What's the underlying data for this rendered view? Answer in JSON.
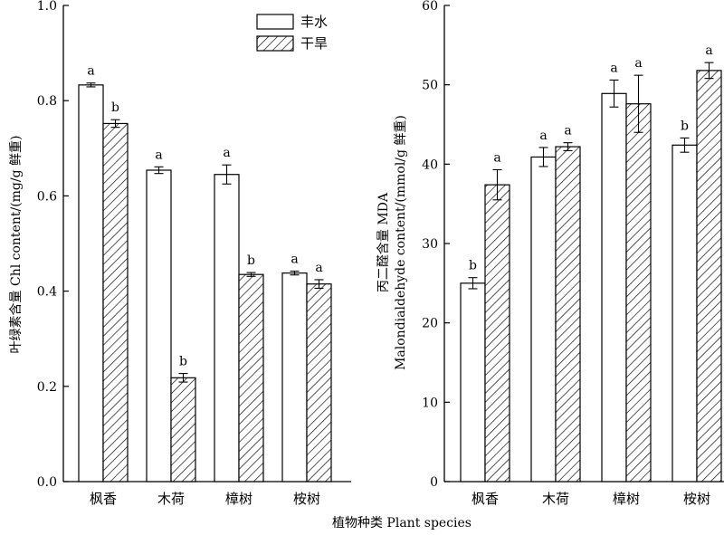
{
  "chart_data": [
    {
      "type": "bar",
      "categories": [
        "枫香",
        "木荷",
        "樟树",
        "桉树"
      ],
      "ylabel": "叶绿素含量 Chl content/(mg/g 鲜重)",
      "ylim": [
        0,
        1.0
      ],
      "yticks": [
        "0.0",
        "0.2",
        "0.4",
        "0.6",
        "0.8",
        "1.0"
      ],
      "legend_position": "top-right",
      "series": [
        {
          "name": "丰水",
          "pattern": "white",
          "values": [
            0.833,
            0.654,
            0.645,
            0.438
          ],
          "errors": [
            0.004,
            0.007,
            0.02,
            0.004
          ],
          "letters": [
            "a",
            "a",
            "a",
            "a"
          ]
        },
        {
          "name": "干旱",
          "pattern": "hatched",
          "values": [
            0.752,
            0.218,
            0.435,
            0.415
          ],
          "errors": [
            0.008,
            0.009,
            0.004,
            0.009
          ],
          "letters": [
            "b",
            "b",
            "b",
            "a"
          ]
        }
      ]
    },
    {
      "type": "bar",
      "categories": [
        "枫香",
        "木荷",
        "樟树",
        "桉树"
      ],
      "ylabel_line1": "丙二醛含量 MDA",
      "ylabel_line2": "Malondialdehyde content/(mmol/g 鲜重)",
      "ylim": [
        0,
        60
      ],
      "yticks": [
        "0",
        "10",
        "20",
        "30",
        "40",
        "50",
        "60"
      ],
      "series": [
        {
          "name": "丰水",
          "pattern": "white",
          "values": [
            25.0,
            40.9,
            48.9,
            42.4
          ],
          "errors": [
            0.7,
            1.2,
            1.7,
            0.9
          ],
          "letters": [
            "b",
            "a",
            "a",
            "b"
          ]
        },
        {
          "name": "干旱",
          "pattern": "hatched",
          "values": [
            37.4,
            42.2,
            47.6,
            51.8
          ],
          "errors": [
            1.9,
            0.5,
            3.6,
            1.0
          ],
          "letters": [
            "a",
            "a",
            "a",
            "a"
          ]
        }
      ]
    }
  ],
  "xlabel": "植物种类 Plant species",
  "colors": {
    "axis": "#000000",
    "bar_fill": "#ffffff",
    "hatch": "#000000"
  }
}
